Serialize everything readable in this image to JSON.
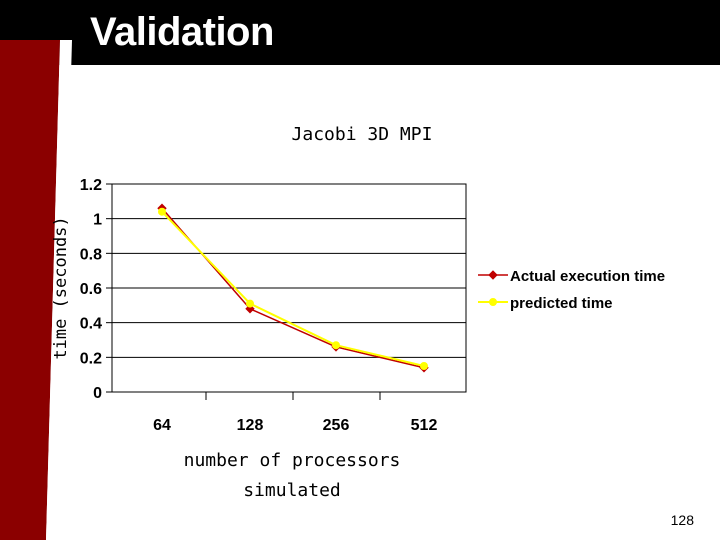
{
  "slide": {
    "title": "Validation",
    "number": "128"
  },
  "colors": {
    "header_bg": "#000000",
    "title_text": "#ffffff",
    "left_accent": "#8b0000",
    "left_accent_edge": "#ffffff",
    "actual_series": "#c00000",
    "predicted_series": "#ffff00"
  },
  "chart_data": {
    "type": "line",
    "title": "Jacobi 3D MPI",
    "xlabel": "number of processors simulated",
    "ylabel": "time (seconds)",
    "categories": [
      "64",
      "128",
      "256",
      "512"
    ],
    "ylim": [
      0,
      1.2
    ],
    "yticks": [
      "0",
      "0.2",
      "0.4",
      "0.6",
      "0.8",
      "1",
      "1.2"
    ],
    "grid": false,
    "legend_position": "right",
    "series": [
      {
        "name": "Actual execution time",
        "values": [
          1.06,
          0.48,
          0.26,
          0.14
        ]
      },
      {
        "name": "predicted time",
        "values": [
          1.04,
          0.51,
          0.27,
          0.15
        ]
      }
    ]
  }
}
